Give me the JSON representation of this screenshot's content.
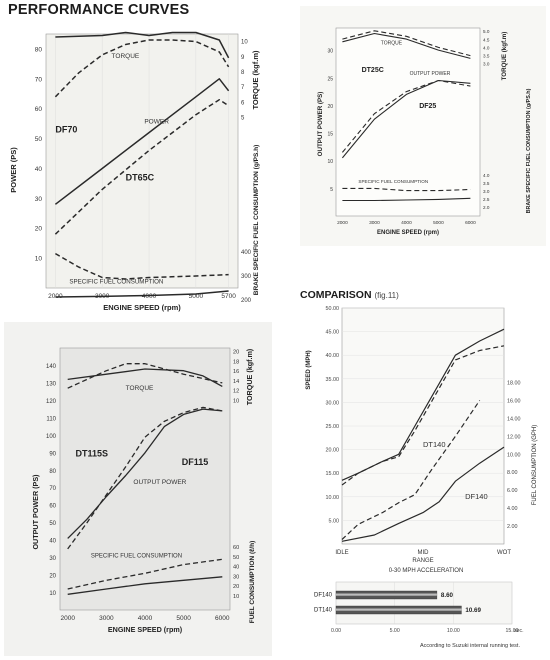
{
  "page": {
    "title": "PERFORMANCE CURVES",
    "comparison_title": "COMPARISON",
    "comparison_fig": "(fig.11)",
    "accel_title": "0-30 MPH ACCELERATION",
    "accel_note": "According to Suzuki internal running test."
  },
  "chart_data": [
    {
      "id": "df70",
      "type": "line",
      "xlabel": "ENGINE SPEED (rpm)",
      "ylabel": "POWER (PS)",
      "ylabel_right": "TORQUE (kgf.m)",
      "ylabel_right2": "BRAKE SPECIFIC FUEL CONSUMPTION (g/PS.h)",
      "x_ticks": [
        2000,
        3000,
        4000,
        5000,
        5700
      ],
      "y_ticks": [
        10,
        20,
        30,
        40,
        50,
        60,
        70,
        80
      ],
      "right_ticks_torque": [
        5,
        6,
        7,
        8,
        9,
        10
      ],
      "right_ticks_fuel": [
        200,
        300,
        400
      ],
      "xlim": [
        1800,
        5900
      ],
      "ylim": [
        0,
        85
      ],
      "annotations": [
        "TORQUE",
        "POWER",
        "DF70",
        "DT65C",
        "SPECIFIC FUEL CONSUMPTION"
      ],
      "series": [
        {
          "name": "DF70",
          "group": "power",
          "style": "solid",
          "x": [
            2000,
            3000,
            4000,
            5000,
            5500,
            5700
          ],
          "y": [
            28,
            40,
            52,
            64,
            70,
            66
          ]
        },
        {
          "name": "DT65C",
          "group": "power",
          "style": "dashed",
          "x": [
            2000,
            3000,
            4000,
            5000,
            5500,
            5700
          ],
          "y": [
            18,
            33,
            46,
            58,
            63,
            61
          ]
        },
        {
          "name": "DF70",
          "group": "torque",
          "style": "solid",
          "x": [
            2000,
            3000,
            3500,
            4000,
            4500,
            5000,
            5500,
            5700
          ],
          "y": [
            84,
            84.5,
            85.5,
            84.5,
            85.5,
            85.5,
            83,
            77
          ]
        },
        {
          "name": "DT65C",
          "group": "torque",
          "style": "dashed",
          "x": [
            2000,
            2500,
            3000,
            3500,
            4000,
            4500,
            5000,
            5500,
            5700
          ],
          "y": [
            64,
            72,
            78,
            81.5,
            83,
            83,
            82.5,
            79,
            74
          ]
        },
        {
          "name": "DT65C",
          "group": "fuel",
          "style": "dashed",
          "x": [
            2000,
            2500,
            3000,
            3500,
            4000,
            5000,
            5700
          ],
          "y": [
            11.5,
            7,
            3.5,
            3,
            3.5,
            4,
            4.5
          ]
        },
        {
          "name": "DF70",
          "group": "fuel",
          "style": "solid",
          "x": [
            2000,
            3000,
            4000,
            5000,
            5700
          ],
          "y": [
            -3,
            -2.8,
            -2.5,
            -2,
            -1
          ]
        }
      ]
    },
    {
      "id": "df25",
      "type": "line",
      "xlabel": "ENGINE SPEED (rpm)",
      "ylabel": "OUTPUT POWER (PS)",
      "ylabel_right": "TORQUE (kgf.m)",
      "ylabel_right2": "BRAKE SPECIFIC FUEL CONSUMPTION (g/PS.h)",
      "x_ticks": [
        2000,
        3000,
        4000,
        5000,
        6000
      ],
      "y_ticks": [
        5,
        10,
        15,
        20,
        25,
        30
      ],
      "right_ticks_torque": [
        3.0,
        3.5,
        4.0,
        4.5,
        5.0
      ],
      "right_ticks_fuel": [
        2.0,
        2.5,
        3.0,
        3.5,
        4.0
      ],
      "xlim": [
        1800,
        6300
      ],
      "ylim": [
        0,
        34
      ],
      "annotations": [
        "TORQUE",
        "DT25C",
        "OUTPUT POWER",
        "DF25",
        "SPECIFIC FUEL CONSUMPTION"
      ],
      "series": [
        {
          "name": "DF25",
          "group": "power",
          "style": "solid",
          "x": [
            2000,
            3000,
            4000,
            5000,
            6000
          ],
          "y": [
            10.5,
            17.5,
            22,
            24.5,
            24
          ]
        },
        {
          "name": "DT25C",
          "group": "power",
          "style": "dashed",
          "x": [
            2000,
            3000,
            4000,
            5000,
            6000
          ],
          "y": [
            11.5,
            18.5,
            22.5,
            24.5,
            23.5
          ]
        },
        {
          "name": "DF25",
          "group": "torque",
          "style": "solid",
          "x": [
            2000,
            3000,
            4000,
            5000,
            6000
          ],
          "y": [
            31.5,
            33,
            32,
            30,
            28.5
          ]
        },
        {
          "name": "DT25C",
          "group": "torque",
          "style": "dashed",
          "x": [
            2000,
            3000,
            4000,
            5000,
            6000
          ],
          "y": [
            32,
            33.5,
            32.5,
            30.5,
            29
          ]
        },
        {
          "name": "DT25C",
          "group": "fuel",
          "style": "dashed",
          "x": [
            2000,
            3000,
            4000,
            5000,
            6000
          ],
          "y": [
            5,
            5,
            4.6,
            4.6,
            4.8
          ]
        },
        {
          "name": "DF25",
          "group": "fuel",
          "style": "solid",
          "x": [
            2000,
            3000,
            4000,
            5000,
            6000
          ],
          "y": [
            2.8,
            2.8,
            2.9,
            3,
            3.2
          ]
        }
      ]
    },
    {
      "id": "df115",
      "type": "line",
      "xlabel": "ENGINE SPEED (rpm)",
      "ylabel": "OUTPUT POWER (PS)",
      "ylabel_right": "TORQUE (kgf.m)",
      "ylabel_right2": "FUEL CONSUMPTION (ℓ/h)",
      "x_ticks": [
        2000,
        3000,
        4000,
        5000,
        6000
      ],
      "y_ticks": [
        10,
        20,
        30,
        40,
        50,
        60,
        70,
        80,
        90,
        100,
        110,
        120,
        130,
        140
      ],
      "right_ticks_torque": [
        10,
        12,
        14,
        16,
        18,
        20
      ],
      "right_ticks_fuel": [
        10,
        20,
        30,
        40,
        50,
        60
      ],
      "xlim": [
        1800,
        6200
      ],
      "ylim": [
        0,
        150
      ],
      "annotations": [
        "TORQUE",
        "DT115S",
        "DF115",
        "OUTPUT POWER",
        "SPECIFIC FUEL CONSUMPTION"
      ],
      "series": [
        {
          "name": "DF115",
          "group": "power",
          "style": "solid",
          "x": [
            2000,
            2500,
            3000,
            3500,
            4000,
            4500,
            5000,
            5500,
            6000
          ],
          "y": [
            41,
            52,
            65,
            77,
            90,
            105,
            112,
            115,
            114
          ]
        },
        {
          "name": "DT115S",
          "group": "power",
          "style": "dashed",
          "x": [
            2000,
            2500,
            3000,
            3500,
            4000,
            4500,
            5000,
            5500,
            6000
          ],
          "y": [
            35,
            50,
            66,
            82,
            99,
            108,
            113,
            116,
            114
          ]
        },
        {
          "name": "DF115",
          "group": "torque",
          "style": "solid",
          "x": [
            2000,
            3000,
            4000,
            5000,
            5500,
            6000
          ],
          "y": [
            132,
            135,
            138,
            137,
            134,
            128
          ]
        },
        {
          "name": "DT115S",
          "group": "torque",
          "style": "dashed",
          "x": [
            2000,
            2500,
            3000,
            3500,
            4000,
            5000,
            6000
          ],
          "y": [
            127,
            132,
            137,
            141,
            141,
            135,
            130
          ]
        },
        {
          "name": "DT115S",
          "group": "fuel",
          "style": "dashed",
          "x": [
            2000,
            3000,
            4000,
            5000,
            6000
          ],
          "y": [
            12,
            17,
            21,
            26,
            29
          ]
        },
        {
          "name": "DF115",
          "group": "fuel",
          "style": "solid",
          "x": [
            2000,
            3000,
            4000,
            5000,
            6000
          ],
          "y": [
            9,
            12,
            15,
            17,
            19
          ]
        }
      ]
    },
    {
      "id": "comparison",
      "type": "line",
      "xlabel": "RANGE",
      "ylabel": "SPEED (MPH)",
      "ylabel_right": "FUEL CONSUMPTION (GPH)",
      "categories": [
        "IDLE",
        "MID",
        "WOT"
      ],
      "x_range": [
        0,
        100
      ],
      "left_ticks": [
        "5.00",
        "10.00",
        "15.00",
        "20.00",
        "25.00",
        "30.00",
        "35.00",
        "40.00",
        "45.00",
        "50.00"
      ],
      "right_ticks": [
        "2.00",
        "4.00",
        "6.00",
        "8.00",
        "10.00",
        "12.00",
        "14.00",
        "16.00",
        "18.00"
      ],
      "ylim": [
        0,
        50
      ],
      "ylim_right": [
        0,
        18.5
      ],
      "annotations": [
        "DT140",
        "DF140"
      ],
      "series": [
        {
          "name": "DF140",
          "group": "speed",
          "style": "solid",
          "axis": "left",
          "x": [
            0,
            10,
            25,
            35,
            45,
            55,
            70,
            85,
            100
          ],
          "y": [
            13.5,
            15,
            17.5,
            19,
            25,
            31,
            40,
            43,
            45.5
          ]
        },
        {
          "name": "DT140",
          "group": "speed",
          "style": "dashed",
          "axis": "left",
          "x": [
            0,
            10,
            25,
            35,
            45,
            55,
            70,
            85,
            100
          ],
          "y": [
            12.5,
            15,
            17.5,
            18.5,
            24,
            30,
            39,
            41,
            42
          ]
        },
        {
          "name": "DT140",
          "group": "fuel",
          "style": "dashed",
          "axis": "right",
          "x": [
            0,
            10,
            25,
            35,
            45,
            55,
            70,
            85
          ],
          "y": [
            0.5,
            2.2,
            3.5,
            4.6,
            5.5,
            8.2,
            12,
            16
          ]
        },
        {
          "name": "DF140",
          "group": "fuel",
          "style": "solid",
          "axis": "right",
          "x": [
            0,
            20,
            35,
            50,
            60,
            70,
            85,
            100
          ],
          "y": [
            0.3,
            1,
            2.3,
            3.5,
            4.7,
            7,
            9,
            10.8
          ]
        }
      ]
    },
    {
      "id": "acceleration",
      "type": "bar",
      "orientation": "horizontal",
      "title": "0-30 MPH ACCELERATION",
      "categories": [
        "DF140",
        "DT140"
      ],
      "values": [
        8.6,
        10.69
      ],
      "value_labels": [
        "8.60",
        "10.69"
      ],
      "x_ticks": [
        "0.00",
        "5.00",
        "10.00",
        "15.00"
      ],
      "x_unit": "sec.",
      "xlim": [
        0,
        15
      ]
    }
  ]
}
